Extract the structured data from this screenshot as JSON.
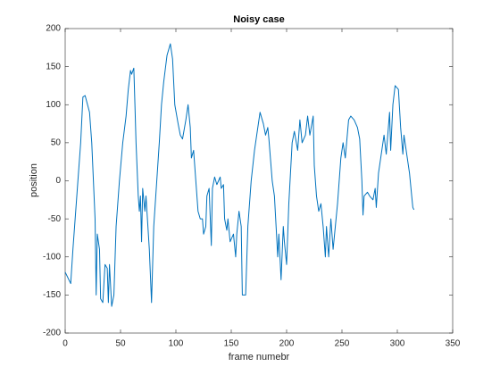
{
  "chart_data": {
    "type": "line",
    "title": "Noisy case",
    "xlabel": "frame numebr",
    "ylabel": "position",
    "xlim": [
      0,
      350
    ],
    "xticks": [
      0,
      50,
      100,
      150,
      200,
      250,
      300,
      350
    ],
    "ylim": [
      -200,
      200
    ],
    "yticks": [
      -200,
      -150,
      -100,
      -50,
      0,
      50,
      100,
      150,
      200
    ],
    "grid": false,
    "series": [
      {
        "name": "position",
        "color": "#0072bd",
        "x": [
          0,
          5,
          7,
          12,
          14,
          16,
          18,
          22,
          24,
          27,
          28,
          29,
          31,
          32,
          34,
          36,
          38,
          39,
          40,
          42,
          44,
          46,
          49,
          52,
          55,
          57,
          59,
          60,
          62,
          63,
          64,
          66,
          67,
          68,
          69,
          70,
          72,
          73,
          76,
          78,
          80,
          85,
          87,
          89,
          92,
          95,
          97,
          99,
          102,
          104,
          106,
          109,
          111,
          113,
          114,
          116,
          118,
          120,
          122,
          124,
          125,
          127,
          128,
          130,
          132,
          133,
          135,
          137,
          140,
          141,
          143,
          144,
          146,
          147,
          149,
          152,
          154,
          155,
          157,
          159,
          160,
          163,
          165,
          168,
          171,
          173,
          176,
          179,
          181,
          183,
          184,
          187,
          189,
          192,
          193,
          195,
          197,
          198,
          200,
          202,
          205,
          207,
          210,
          212,
          214,
          217,
          219,
          221,
          224,
          225,
          227,
          229,
          231,
          233,
          235,
          236,
          238,
          240,
          242,
          244,
          246,
          249,
          251,
          253,
          256,
          258,
          261,
          264,
          266,
          268,
          269,
          270,
          273,
          275,
          278,
          280,
          281,
          283,
          285,
          288,
          290,
          293,
          294,
          296,
          298,
          301,
          303,
          305,
          306,
          309,
          311,
          313,
          314,
          315
        ],
        "values": [
          -120,
          -135,
          -90,
          10,
          50,
          110,
          112,
          90,
          50,
          -50,
          -150,
          -70,
          -90,
          -155,
          -160,
          -110,
          -115,
          -160,
          -110,
          -165,
          -150,
          -60,
          0,
          50,
          85,
          120,
          145,
          140,
          148,
          100,
          50,
          -20,
          -40,
          -20,
          -80,
          -10,
          -40,
          -20,
          -90,
          -160,
          -60,
          50,
          100,
          130,
          165,
          180,
          160,
          100,
          75,
          60,
          55,
          80,
          100,
          70,
          30,
          40,
          0,
          -40,
          -50,
          -50,
          -70,
          -60,
          -20,
          -10,
          -85,
          -10,
          5,
          -5,
          5,
          -10,
          -5,
          -50,
          -65,
          -50,
          -80,
          -70,
          -100,
          -70,
          -40,
          -60,
          -150,
          -150,
          -60,
          0,
          40,
          60,
          90,
          75,
          60,
          70,
          55,
          0,
          -20,
          -100,
          -70,
          -130,
          -60,
          -80,
          -110,
          -30,
          50,
          65,
          40,
          80,
          50,
          60,
          85,
          60,
          85,
          20,
          -20,
          -40,
          -30,
          -60,
          -100,
          -60,
          -100,
          -50,
          -90,
          -60,
          -30,
          30,
          50,
          30,
          80,
          85,
          80,
          70,
          55,
          0,
          -45,
          -20,
          -15,
          -20,
          -25,
          -10,
          -35,
          10,
          30,
          60,
          35,
          90,
          40,
          100,
          125,
          120,
          70,
          35,
          60,
          30,
          10,
          -20,
          -35,
          -38
        ]
      }
    ]
  }
}
